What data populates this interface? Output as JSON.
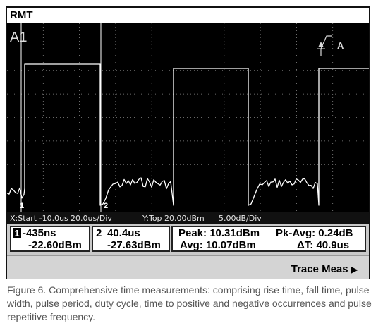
{
  "screen": {
    "title": "RMT",
    "channel_label": "A1",
    "trigger_label": "A",
    "marker_1_tag": "1",
    "marker_2_tag": "2",
    "axis": {
      "x_info": "X:Start -10.0us",
      "x_div": "20.0us/Div",
      "y_info": "Y:Top  20.00dBm",
      "y_div": "5.00dB/Div"
    },
    "marker1": {
      "index": "1",
      "time": "-435ns",
      "power": "-22.60dBm"
    },
    "marker2": {
      "index": "2",
      "time": "40.4us",
      "power": "-27.63dBm"
    },
    "meas": {
      "peak": "Peak: 10.31dBm",
      "pk_avg": "Pk-Avg: 0.24dB",
      "avg": "Avg: 10.07dBm",
      "delta_t": "ΔT: 40.9us"
    },
    "softkey": "Trace Meas"
  },
  "colors": {
    "trace": "#ffffff",
    "grid": "#8a8a8a",
    "background": "#000000"
  },
  "caption": "Figure 6. Comprehensive time measurements: comprising rise time, fall time, pulse width, pulse period, duty cycle, time to positive and negative occurrences and pulse repetitive frequency."
}
